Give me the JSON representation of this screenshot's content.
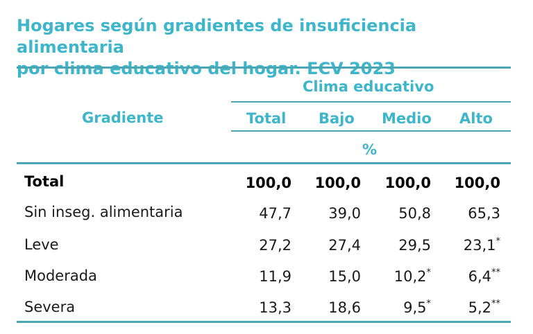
{
  "title": {
    "line1": "Hogares según gradientes de insuficiencia alimentaria",
    "line2": "por clima educativo del hogar. ECV 2023"
  },
  "table": {
    "row_header": "Gradiente",
    "group_header": "Clima educativo",
    "columns": [
      "Total",
      "Bajo",
      "Medio",
      "Alto"
    ],
    "unit": "%",
    "rows": [
      {
        "label": "Total",
        "values": [
          "100,0",
          "100,0",
          "100,0",
          "100,0"
        ],
        "marks": [
          "",
          "",
          "",
          ""
        ]
      },
      {
        "label": "Sin inseg. alimentaria",
        "values": [
          "47,7",
          "39,0",
          "50,8",
          "65,3"
        ],
        "marks": [
          "",
          "",
          "",
          ""
        ]
      },
      {
        "label": "Leve",
        "values": [
          "27,2",
          "27,4",
          "29,5",
          "23,1"
        ],
        "marks": [
          "",
          "",
          "",
          "*"
        ]
      },
      {
        "label": "Moderada",
        "values": [
          "11,9",
          "15,0",
          "10,2",
          "6,4"
        ],
        "marks": [
          "",
          "",
          "*",
          "**"
        ]
      },
      {
        "label": "Severa",
        "values": [
          "13,3",
          "18,6",
          "9,5",
          "5,2"
        ],
        "marks": [
          "",
          "",
          "*",
          "**"
        ]
      }
    ]
  },
  "colors": {
    "accent": "#3db6cc",
    "rule": "#4aa6b5",
    "text": "#1a1a1a"
  }
}
